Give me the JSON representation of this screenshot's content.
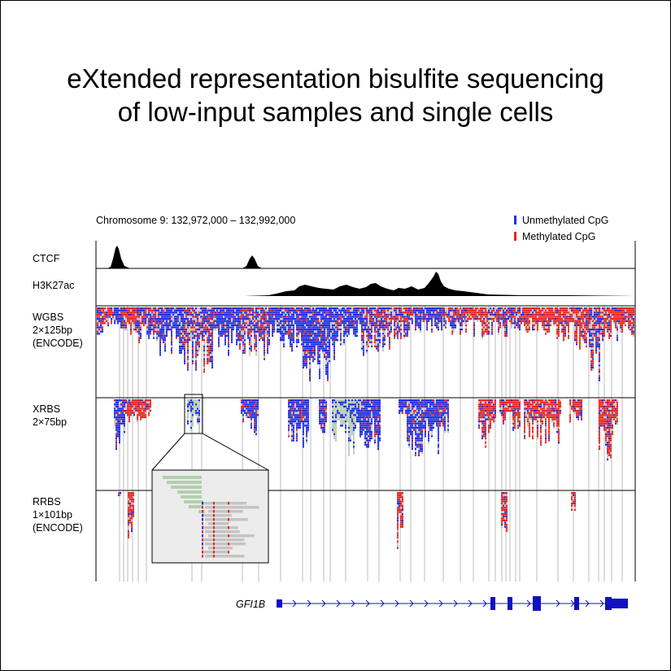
{
  "title": {
    "line1": "eXtended representation bisulfite sequencing",
    "line2": "of low-input samples and single cells"
  },
  "region_label": "Chromosome 9: 132,972,000 – 132,992,000",
  "legend": [
    {
      "label": "Unmethylated CpG",
      "color": "#1f2fe6"
    },
    {
      "label": "Methylated CpG",
      "color": "#e8261f"
    }
  ],
  "tracks": {
    "ctcf": {
      "label": "CTCF"
    },
    "h3k27ac": {
      "label": "H3K27ac"
    },
    "wgbs": {
      "line1": "WGBS",
      "line2": "2×125bp",
      "line3": "(ENCODE)"
    },
    "xrbs": {
      "line1": "XRBS",
      "line2": "2×75bp"
    },
    "rrbs": {
      "line1": "RRBS",
      "line2": "1×101bp",
      "line3": "(ENCODE)"
    }
  },
  "gene": {
    "name": "GFI1B",
    "color": "#1010c0"
  },
  "colors": {
    "unmethylated": "#1f2fe6",
    "methylated": "#e8261f",
    "read": "#c4c4c4",
    "read_green": "#b3cfae",
    "signal": "#000000",
    "gridline": "#d3d3d3"
  }
}
